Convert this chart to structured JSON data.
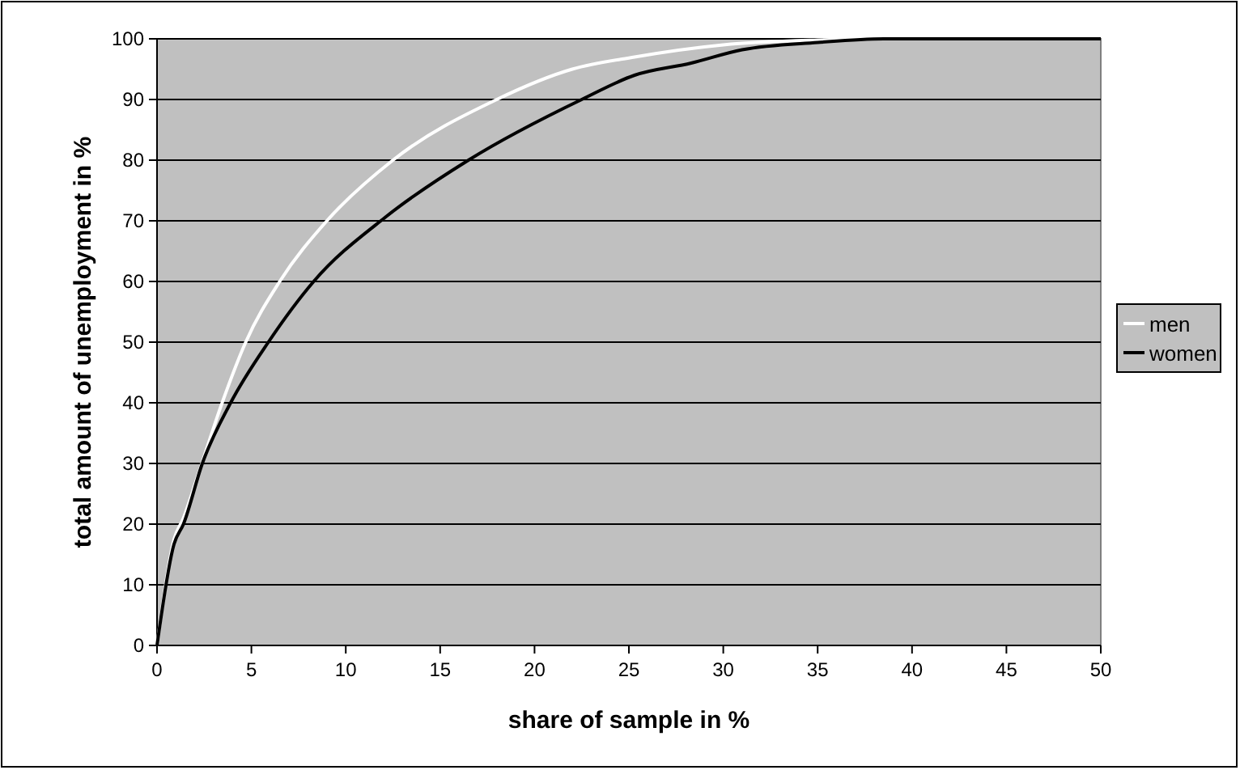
{
  "chart_data": {
    "type": "line",
    "xlabel": "share of sample in %",
    "ylabel": "total amount of unemployment in %",
    "xlim": [
      0,
      50
    ],
    "ylim": [
      0,
      100
    ],
    "xticks": [
      0,
      5,
      10,
      15,
      20,
      25,
      30,
      35,
      40,
      45,
      50
    ],
    "yticks": [
      0,
      10,
      20,
      30,
      40,
      50,
      60,
      70,
      80,
      90,
      100
    ],
    "grid": "y",
    "legend": "right",
    "marker": "none",
    "line_style": "solid",
    "series": [
      {
        "name": "men",
        "color": "#ffffff",
        "x": [
          0,
          0.9,
          1.4,
          2.1,
          3.45,
          4.7,
          6.5,
          9,
          12.5,
          18,
          22,
          25.3,
          30,
          35,
          38,
          50
        ],
        "values": [
          0,
          17.5,
          21,
          27.4,
          40,
          50,
          60,
          70,
          80,
          90,
          95,
          97,
          99,
          99.8,
          100,
          100
        ]
      },
      {
        "name": "women",
        "color": "#000000",
        "x": [
          0,
          0.9,
          1.4,
          2.4,
          3.9,
          5.9,
          8.3,
          12.1,
          16.5,
          22.5,
          25.3,
          28.3,
          31,
          35,
          38.5,
          50
        ],
        "values": [
          0,
          16.7,
          20,
          30,
          40,
          50,
          60,
          70.6,
          80,
          90,
          94,
          96,
          98.2,
          99.4,
          100,
          100
        ]
      }
    ]
  }
}
